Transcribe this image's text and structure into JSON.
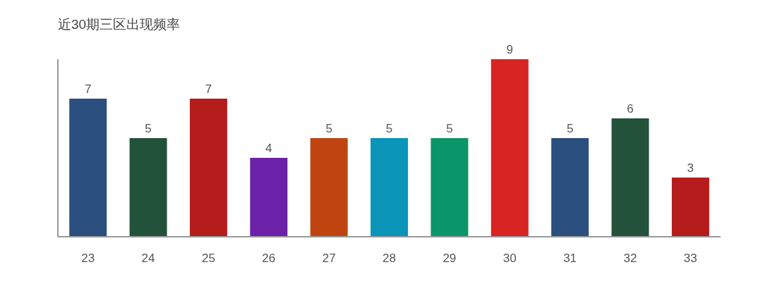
{
  "chart_data": {
    "type": "bar",
    "title": "近30期三区出现频率",
    "categories": [
      "23",
      "24",
      "25",
      "26",
      "27",
      "28",
      "29",
      "30",
      "31",
      "32",
      "33"
    ],
    "values": [
      7,
      5,
      7,
      4,
      5,
      5,
      5,
      9,
      5,
      6,
      3
    ],
    "colors": [
      "#2b4f7e",
      "#22523a",
      "#b51c1c",
      "#6b22a8",
      "#c0440f",
      "#0a94b8",
      "#0a9668",
      "#d92424",
      "#2b4f7e",
      "#22523a",
      "#b51c1c"
    ],
    "data_labels": true
  }
}
